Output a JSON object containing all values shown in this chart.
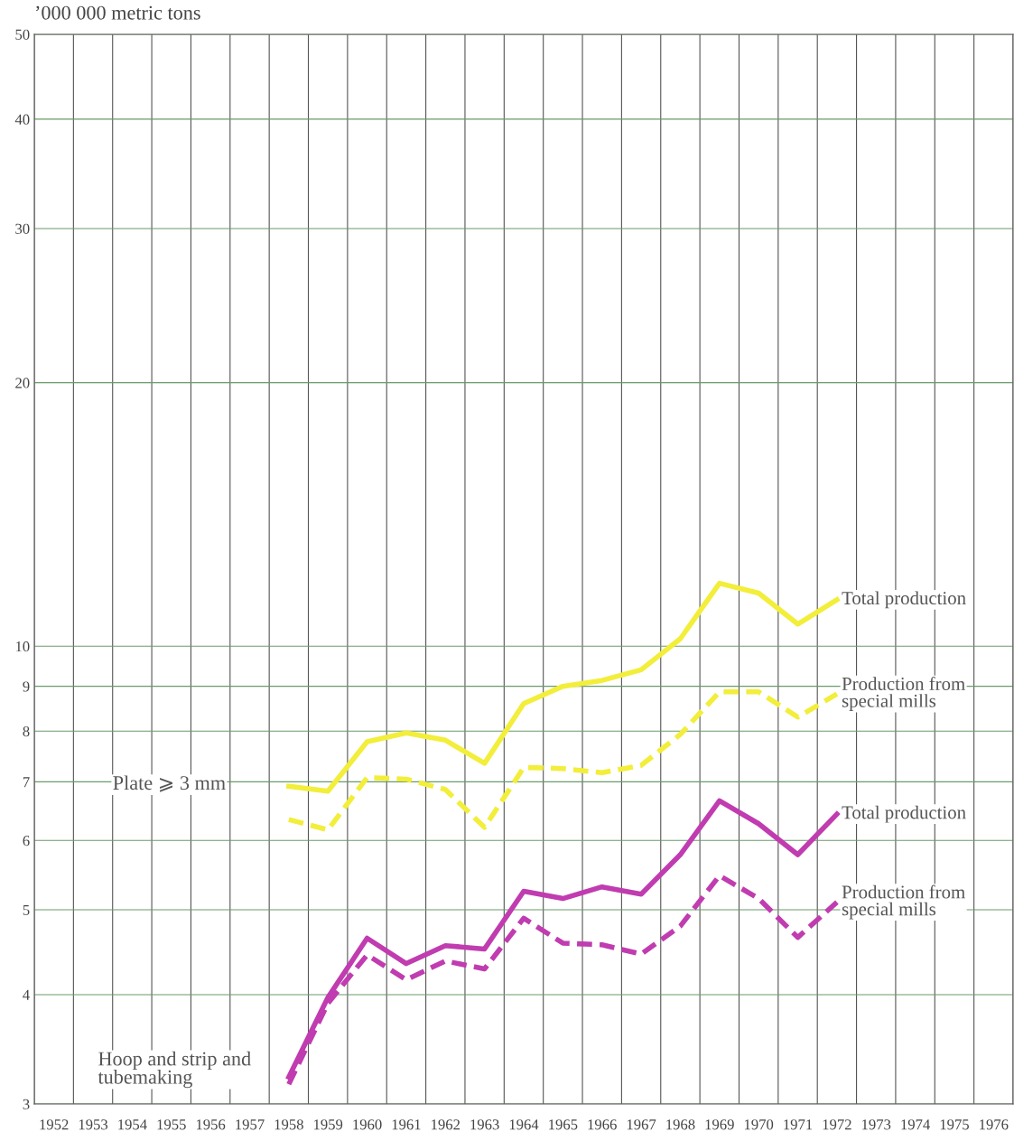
{
  "chart_data": {
    "type": "line",
    "ylabel": "’000 000 metric tons",
    "categories": [
      "1952",
      "1953",
      "1954",
      "1955",
      "1956",
      "1957",
      "1958",
      "1959",
      "1960",
      "1961",
      "1962",
      "1963",
      "1964",
      "1965",
      "1966",
      "1967",
      "1968",
      "1969",
      "1970",
      "1971",
      "1972",
      "1973",
      "1974",
      "1975",
      "1976"
    ],
    "log": "y",
    "ylim": [
      3,
      50
    ],
    "yticks": [
      3,
      4,
      5,
      6,
      7,
      8,
      9,
      10,
      20,
      30,
      40,
      50
    ],
    "grid": true,
    "legend": false,
    "series": [
      {
        "name": "Total production",
        "color": "#f2ee3a",
        "line_style": "solid",
        "values": [
          null,
          null,
          null,
          null,
          null,
          null,
          6.92,
          6.83,
          7.78,
          7.96,
          7.81,
          7.35,
          8.6,
          9.0,
          9.14,
          9.4,
          10.2,
          11.8,
          11.5,
          10.6,
          11.3,
          null,
          null,
          null,
          null
        ]
      },
      {
        "name": "Production from special mills",
        "color": "#f2ee3a",
        "line_style": "dashed",
        "values": [
          null,
          null,
          null,
          null,
          null,
          null,
          6.34,
          6.17,
          7.08,
          7.05,
          6.86,
          6.21,
          7.27,
          7.25,
          7.17,
          7.31,
          7.93,
          8.87,
          8.87,
          8.3,
          8.82,
          null,
          null,
          null,
          null
        ]
      },
      {
        "name": "Total production",
        "color": "#c03cb0",
        "line_style": "solid",
        "values": [
          null,
          null,
          null,
          null,
          null,
          null,
          3.22,
          3.97,
          4.64,
          4.34,
          4.55,
          4.51,
          5.25,
          5.15,
          5.31,
          5.21,
          5.78,
          6.66,
          6.27,
          5.78,
          6.43,
          null,
          null,
          null,
          null
        ]
      },
      {
        "name": "Production from special mills",
        "color": "#c03cb0",
        "line_style": "dashed",
        "values": [
          null,
          null,
          null,
          null,
          null,
          null,
          3.16,
          3.91,
          4.44,
          4.16,
          4.37,
          4.28,
          4.89,
          4.58,
          4.56,
          4.45,
          4.79,
          5.47,
          5.15,
          4.65,
          5.1,
          null,
          null,
          null,
          null
        ]
      }
    ],
    "annotations": [
      "Plate ⩾ 3 mm",
      "Hoop and strip and\ntubemaking"
    ]
  }
}
